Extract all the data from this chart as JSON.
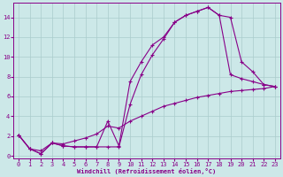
{
  "xlabel": "Windchill (Refroidissement éolien,°C)",
  "bg_color": "#cce8e8",
  "line_color": "#880088",
  "grid_color": "#aacccc",
  "xlim": [
    -0.5,
    23.5
  ],
  "ylim": [
    -0.3,
    15.5
  ],
  "xticks": [
    0,
    1,
    2,
    3,
    4,
    5,
    6,
    7,
    8,
    9,
    10,
    11,
    12,
    13,
    14,
    15,
    16,
    17,
    18,
    19,
    20,
    21,
    22,
    23
  ],
  "yticks": [
    0,
    2,
    4,
    6,
    8,
    10,
    12,
    14
  ],
  "line1_x": [
    0,
    1,
    2,
    3,
    4,
    5,
    6,
    7,
    8,
    9,
    10,
    11,
    12,
    13,
    14,
    15,
    16,
    17,
    18,
    19,
    20,
    21,
    22,
    23
  ],
  "line1_y": [
    2.1,
    0.7,
    0.2,
    1.3,
    1.0,
    0.9,
    0.9,
    0.9,
    0.9,
    0.9,
    5.2,
    8.2,
    10.2,
    11.8,
    13.5,
    14.2,
    14.6,
    15.0,
    14.2,
    8.2,
    7.8,
    7.5,
    7.2,
    7.0
  ],
  "line2_x": [
    0,
    1,
    2,
    3,
    4,
    5,
    6,
    7,
    8,
    9,
    10,
    11,
    12,
    13,
    14,
    15,
    16,
    17,
    18,
    19,
    20,
    21,
    22,
    23
  ],
  "line2_y": [
    2.1,
    0.7,
    0.2,
    1.3,
    1.0,
    0.9,
    0.9,
    0.9,
    3.5,
    1.0,
    7.5,
    9.5,
    11.2,
    12.0,
    13.5,
    14.2,
    14.6,
    15.0,
    14.2,
    14.0,
    9.5,
    8.5,
    7.2,
    7.0
  ],
  "line3_x": [
    0,
    1,
    2,
    3,
    4,
    5,
    6,
    7,
    8,
    9,
    10,
    11,
    12,
    13,
    14,
    15,
    16,
    17,
    18,
    19,
    20,
    21,
    22,
    23
  ],
  "line3_y": [
    2.1,
    0.7,
    0.5,
    1.3,
    1.2,
    1.5,
    1.8,
    2.2,
    3.0,
    2.8,
    3.5,
    4.0,
    4.5,
    5.0,
    5.3,
    5.6,
    5.9,
    6.1,
    6.3,
    6.5,
    6.6,
    6.7,
    6.8,
    7.0
  ]
}
